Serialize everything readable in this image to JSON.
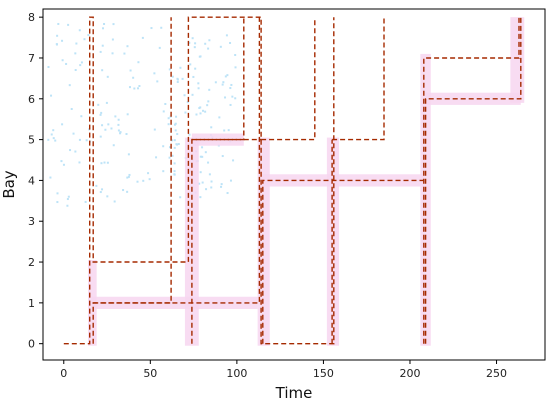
{
  "chart_data": {
    "type": "line",
    "title": "",
    "xlabel": "Time",
    "ylabel": "Bay",
    "xlim": [
      -12,
      278
    ],
    "ylim": [
      -0.4,
      8.2
    ],
    "xticks": [
      0,
      50,
      100,
      150,
      200,
      250
    ],
    "yticks": [
      0,
      1,
      2,
      3,
      4,
      5,
      6,
      7,
      8
    ],
    "grid": false,
    "legend": "none",
    "line_color": "#a52a00",
    "highlight_color": "#f7d6f0",
    "dot_color": "#bde3f7",
    "series": [
      {
        "x": [
          0,
          15,
          15,
          17,
          17,
          72,
          72,
          114,
          114,
          156,
          156
        ],
        "y": [
          0,
          0,
          8,
          8,
          2,
          2,
          8,
          8,
          0,
          0,
          8
        ]
      },
      {
        "x": [
          17,
          62,
          62
        ],
        "y": [
          1,
          1,
          8
        ]
      },
      {
        "x": [
          17,
          17,
          113,
          113
        ],
        "y": [
          0,
          1,
          1,
          8
        ]
      },
      {
        "x": [
          74,
          104,
          104
        ],
        "y": [
          5,
          5,
          8
        ]
      },
      {
        "x": [
          74,
          74,
          114
        ],
        "y": [
          0,
          5,
          5
        ]
      },
      {
        "x": [
          114,
          145,
          145
        ],
        "y": [
          5,
          5,
          8
        ]
      },
      {
        "x": [
          115,
          115,
          208
        ],
        "y": [
          0,
          4,
          4
        ]
      },
      {
        "x": [
          155,
          185,
          185
        ],
        "y": [
          5,
          5,
          8
        ]
      },
      {
        "x": [
          155,
          155
        ],
        "y": [
          0,
          5
        ]
      },
      {
        "x": [
          208,
          208,
          263,
          263
        ],
        "y": [
          0,
          7,
          7,
          8
        ]
      },
      {
        "x": [
          209,
          209,
          264,
          264
        ],
        "y": [
          0,
          6,
          6,
          8
        ]
      }
    ],
    "highlights": [
      {
        "x": [
          14,
          19
        ],
        "y": [
          -0.05,
          2.05
        ]
      },
      {
        "x": [
          70,
          78
        ],
        "y": [
          -0.05,
          5.05
        ]
      },
      {
        "x": [
          112,
          119
        ],
        "y": [
          -0.05,
          5.05
        ]
      },
      {
        "x": [
          152,
          159
        ],
        "y": [
          -0.05,
          5.05
        ]
      },
      {
        "x": [
          206,
          212
        ],
        "y": [
          -0.05,
          7.1
        ]
      },
      {
        "x": [
          16,
          112
        ],
        "y": [
          0.85,
          1.15
        ]
      },
      {
        "x": [
          114,
          208
        ],
        "y": [
          3.85,
          4.15
        ]
      },
      {
        "x": [
          74,
          104
        ],
        "y": [
          4.85,
          5.15
        ]
      },
      {
        "x": [
          209,
          264
        ],
        "y": [
          5.85,
          6.15
        ]
      },
      {
        "x": [
          258,
          266
        ],
        "y": [
          5.9,
          8.0
        ]
      }
    ],
    "scatter_noise": [
      {
        "x": [
          -10,
          60
        ],
        "y": [
          3.4,
          7.9
        ]
      },
      {
        "x": [
          60,
          100
        ],
        "y": [
          3.6,
          7.6
        ]
      }
    ]
  }
}
